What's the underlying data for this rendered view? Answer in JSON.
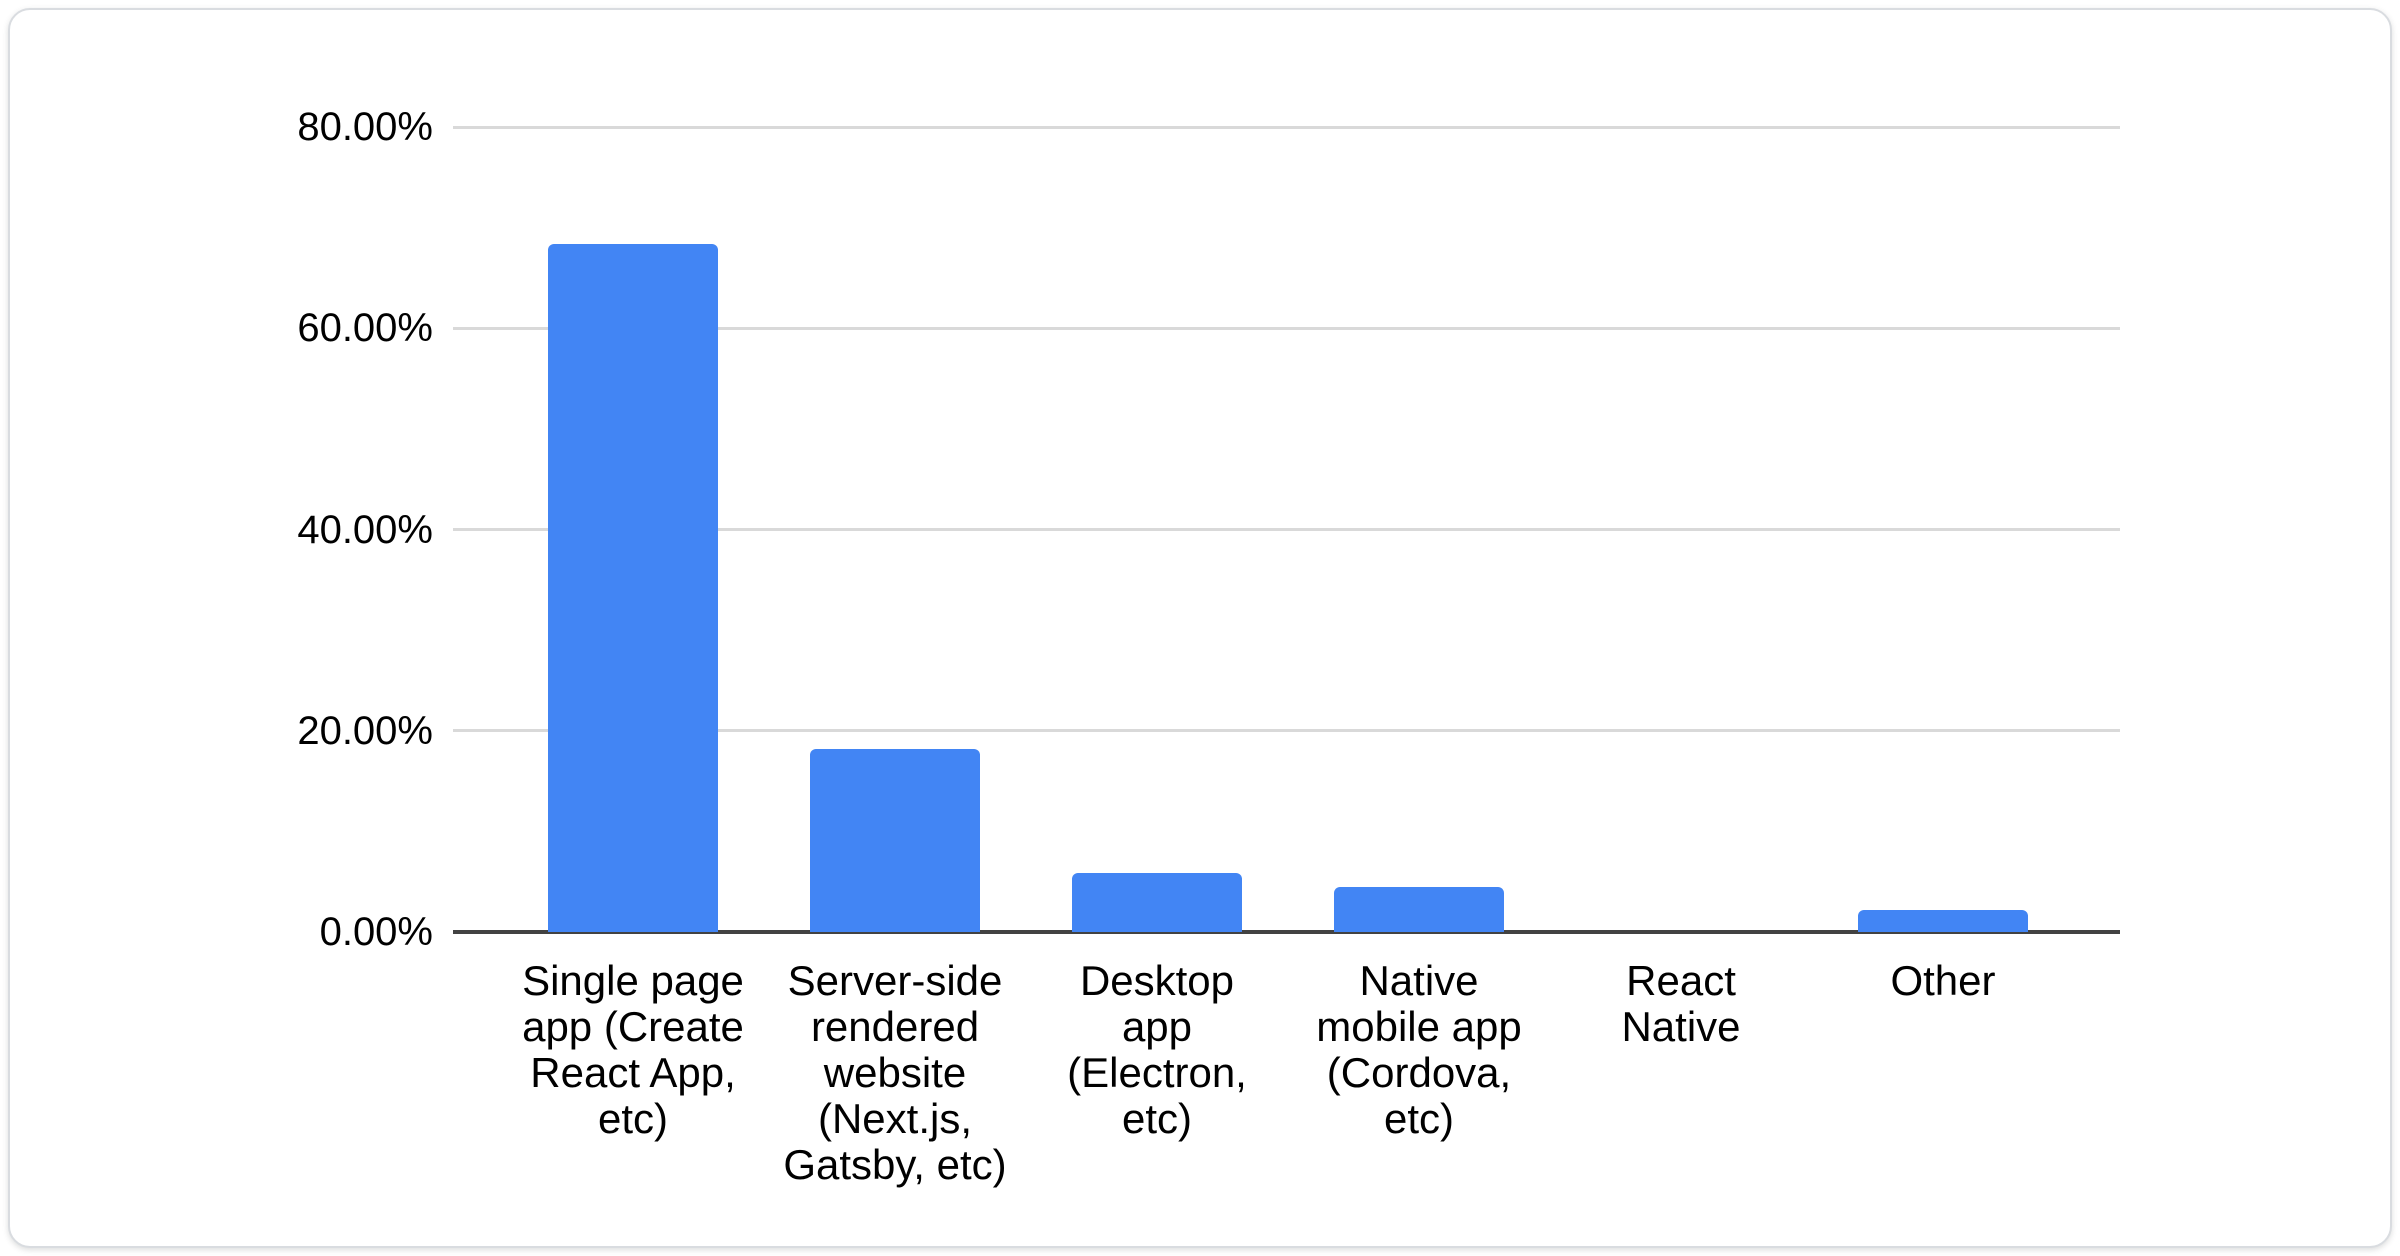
{
  "chart_data": {
    "type": "bar",
    "title": "",
    "xlabel": "",
    "ylabel": "",
    "categories": [
      "Single page app (Create React App, etc)",
      "Server-side rendered website (Next.js, Gatsby, etc)",
      "Desktop app (Electron, etc)",
      "Native mobile app (Cordova, etc)",
      "React Native",
      "Other"
    ],
    "categories_lines": [
      [
        "Single page",
        "app (Create",
        "React App,",
        "etc)"
      ],
      [
        "Server-side",
        "rendered",
        "website",
        "(Next.js,",
        "Gatsby, etc)"
      ],
      [
        "Desktop",
        "app",
        "(Electron,",
        "etc)"
      ],
      [
        "Native",
        "mobile app",
        "(Cordova,",
        "etc)"
      ],
      [
        "React",
        "Native"
      ],
      [
        "Other"
      ]
    ],
    "values": [
      68.4,
      18.2,
      5.9,
      4.5,
      0,
      2.2
    ],
    "value_unit": "%",
    "y_ticks": [
      "0.00%",
      "20.00%",
      "40.00%",
      "60.00%",
      "80.00%"
    ],
    "y_tick_values": [
      0,
      20,
      40,
      60,
      80
    ],
    "ylim": [
      0,
      80
    ],
    "grid": true,
    "legend_position": "none",
    "colors": {
      "bar": "#4285f4",
      "gridline": "#d9d9d9",
      "axis_line": "#424242",
      "label_text": "#000000"
    }
  }
}
